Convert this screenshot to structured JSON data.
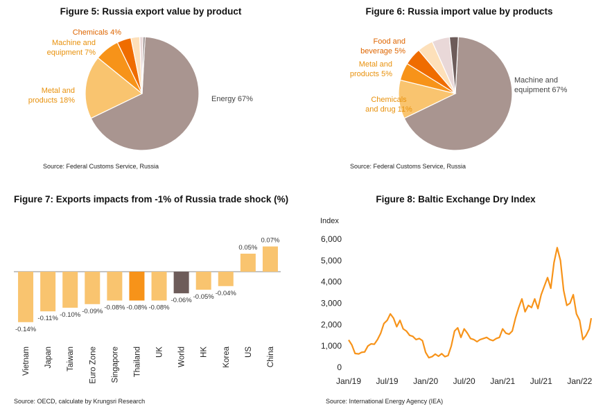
{
  "colors": {
    "light_orange": "#f9c46f",
    "orange": "#f79319",
    "dark_orange": "#ef6c00",
    "peach": "#fde0ba",
    "pale_pink": "#e9d8d8",
    "taupe": "#a99590",
    "dark_brown": "#6d5c5a",
    "label_orange": "#e8910c",
    "label_dark_orange": "#de6500",
    "text_gray": "#444444"
  },
  "chart_data": [
    {
      "id": "fig5",
      "type": "pie",
      "title": "Figure 5: Russia export value by product",
      "source": "Source: Federal Customs Service, Russia",
      "slices": [
        {
          "label_lines": [
            "Energy 67%"
          ],
          "value": 67
        },
        {
          "label_lines": [
            "Metal and",
            "products 18%"
          ],
          "value": 18
        },
        {
          "label_lines": [
            "Machine and",
            "equipment 7%"
          ],
          "value": 7
        },
        {
          "label_lines": [
            "Chemicals 4%"
          ],
          "value": 4
        },
        {
          "label_lines": [],
          "value": 2.5
        },
        {
          "label_lines": [],
          "value": 1
        },
        {
          "label_lines": [],
          "value": 0.5
        }
      ]
    },
    {
      "id": "fig6",
      "type": "pie",
      "title": "Figure 6: Russia import value by products",
      "source": "Source: Federal Customs Service, Russia",
      "slices": [
        {
          "label_lines": [
            "Machine and",
            "equipment  67%"
          ],
          "value": 67
        },
        {
          "label_lines": [
            "Chemicals",
            "and drug 11%"
          ],
          "value": 11
        },
        {
          "label_lines": [
            "Metal and",
            "products 5%"
          ],
          "value": 5
        },
        {
          "label_lines": [
            "Food and",
            "beverage 5%"
          ],
          "value": 5
        },
        {
          "label_lines": [],
          "value": 4.5
        },
        {
          "label_lines": [],
          "value": 5
        },
        {
          "label_lines": [],
          "value": 2.5
        }
      ]
    },
    {
      "id": "fig7",
      "type": "bar",
      "title": "Figure 7: Exports impacts from -1% of Russia trade shock (%)",
      "source": "Source: OECD, calculate by Krungsri Research",
      "categories": [
        "Vietnam",
        "Japan",
        "Taiwan",
        "Euro Zone",
        "Singapore",
        "Thailand",
        "UK",
        "World",
        "HK",
        "Korea",
        "US",
        "China"
      ],
      "values": [
        -0.14,
        -0.11,
        -0.1,
        -0.09,
        -0.08,
        -0.08,
        -0.08,
        -0.06,
        -0.05,
        -0.04,
        0.05,
        0.07
      ],
      "data_labels": [
        "-0.14%",
        "-0.11%",
        "-0.10%",
        "-0.09%",
        "-0.08%",
        "-0.08%",
        "-0.08%",
        "-0.06%",
        "-0.05%",
        "-0.04%",
        "0.05%",
        "0.07%"
      ],
      "ylim": [
        -0.14,
        0.07
      ]
    },
    {
      "id": "fig8",
      "type": "line",
      "title": "Figure 8: Baltic Exchange Dry Index",
      "source": "Source: International Energy Agency (IEA)",
      "ylabel": "Index",
      "ylim": [
        0,
        6000
      ],
      "yticks": [
        "0",
        "1,000",
        "2,000",
        "3,000",
        "4,000",
        "5,000",
        "6,000"
      ],
      "ytick_values": [
        0,
        1000,
        2000,
        3000,
        4000,
        5000,
        6000
      ],
      "xticks": [
        "Jan/19",
        "Jul/19",
        "Jan/20",
        "Jul/20",
        "Jan/21",
        "Jul/21",
        "Jan/22"
      ],
      "xtick_months": [
        0,
        6,
        12,
        18,
        24,
        30,
        36
      ],
      "xlim_months": [
        0,
        37.8
      ],
      "series": [
        {
          "x_months": [
            0,
            0.5,
            1,
            1.6,
            2,
            2.5,
            3,
            3.5,
            4,
            4.5,
            5,
            5.5,
            6,
            6.5,
            7,
            7.5,
            8,
            8.5,
            9,
            9.5,
            10,
            10.5,
            11,
            11.5,
            12,
            12.5,
            13,
            13.5,
            14,
            14.5,
            15,
            15.5,
            16,
            16.5,
            17,
            17.5,
            18,
            18.5,
            19,
            19.5,
            20,
            20.5,
            21,
            21.5,
            22,
            22.5,
            23,
            23.5,
            24,
            24.5,
            25,
            25.5,
            26,
            26.5,
            27,
            27.5,
            28,
            28.5,
            29,
            29.5,
            30,
            30.5,
            31,
            31.5,
            32,
            32.5,
            33,
            33.5,
            34,
            34.5,
            35,
            35.5,
            36,
            36.5,
            37,
            37.5,
            37.8
          ],
          "values": [
            1280,
            1050,
            650,
            630,
            700,
            720,
            1000,
            1100,
            1080,
            1300,
            1600,
            2050,
            2200,
            2500,
            2300,
            1900,
            2200,
            1800,
            1700,
            1500,
            1450,
            1300,
            1350,
            1250,
            700,
            450,
            500,
            620,
            520,
            640,
            500,
            550,
            1000,
            1700,
            1850,
            1400,
            1800,
            1600,
            1350,
            1300,
            1200,
            1300,
            1350,
            1400,
            1300,
            1250,
            1350,
            1400,
            1800,
            1600,
            1550,
            1700,
            2300,
            2800,
            3200,
            2600,
            2900,
            2800,
            3200,
            2750,
            3400,
            3800,
            4200,
            3700,
            4900,
            5600,
            5000,
            3600,
            2900,
            3000,
            3400,
            2500,
            2200,
            1300,
            1500,
            1800,
            2300
          ]
        }
      ]
    }
  ]
}
